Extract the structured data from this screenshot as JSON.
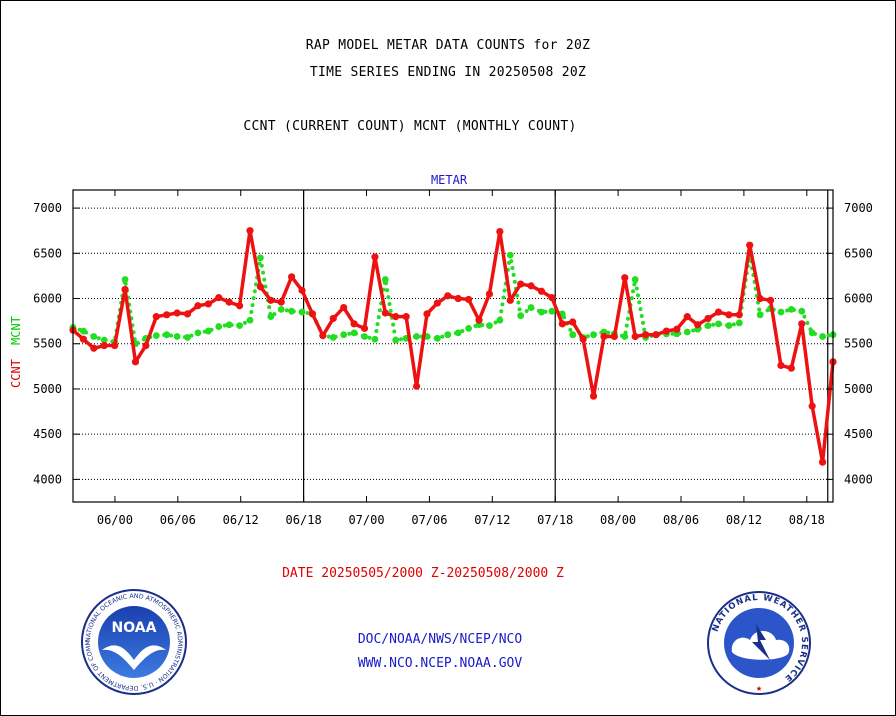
{
  "title_lines": [
    "RAP MODEL METAR DATA COUNTS for 20Z",
    "TIME SERIES ENDING IN 20250508 20Z"
  ],
  "subtitle": "CCNT (CURRENT COUNT) MCNT (MONTHLY COUNT)",
  "date_range": "DATE 20250505/2000 Z-20250508/2000 Z",
  "footer": {
    "line1": "DOC/NOAA/NWS/NCEP/NCO",
    "line2": "WWW.NCO.NCEP.NOAA.GOV"
  },
  "colors": {
    "ccnt": "#ee1111",
    "mcnt": "#22dd22",
    "axis_label_ccnt": "#e00000",
    "axis_label_mcnt": "#00cc00",
    "panel_title": "#1a1ac8"
  },
  "logos": {
    "noaa": "NOAA",
    "noaa_ring_text": "NATIONAL OCEANIC AND ATMOSPHERIC ADMINISTRATION · U.S. DEPARTMENT OF COMMERCE",
    "nws_ring_text": "NATIONAL WEATHER SERVICE"
  },
  "chart_data": {
    "type": "line",
    "panel_title": "METAR",
    "ylabel_ccnt": "CCNT",
    "ylabel_mcnt": "MCNT",
    "ylim": [
      3750,
      7200
    ],
    "yticks": [
      4000,
      4500,
      5000,
      5500,
      6000,
      6500,
      7000
    ],
    "grid": true,
    "x_tick_labels": [
      "06/00",
      "06/06",
      "06/12",
      "06/18",
      "07/00",
      "07/06",
      "07/12",
      "07/18",
      "08/00",
      "08/06",
      "08/12",
      "08/18"
    ],
    "x_day_boundaries": [
      "06/18",
      "07/18"
    ],
    "x_end_marker": "08/20",
    "x_start_hour": -4,
    "x_end_hour": 68.5,
    "series": [
      {
        "name": "CCNT",
        "values": [
          5650,
          5550,
          5450,
          5480,
          5480,
          6100,
          5300,
          5480,
          5800,
          5820,
          5840,
          5830,
          5920,
          5940,
          6010,
          5960,
          5920,
          6750,
          6130,
          5980,
          5960,
          6240,
          6090,
          5830,
          5590,
          5780,
          5900,
          5720,
          5670,
          6460,
          5840,
          5800,
          5800,
          5030,
          5830,
          5950,
          6030,
          6000,
          5990,
          5760,
          6050,
          6740,
          5980,
          6160,
          6140,
          6080,
          6010,
          5720,
          5740,
          5550,
          4920,
          5580,
          5580,
          6230,
          5580,
          5600,
          5600,
          5640,
          5660,
          5800,
          5710,
          5780,
          5850,
          5820,
          5820,
          6590,
          6000,
          5980,
          5260,
          5230,
          5720,
          4810,
          4190,
          5300
        ]
      },
      {
        "name": "MCNT",
        "values": [
          5680,
          5640,
          5580,
          5540,
          5520,
          6210,
          5500,
          5560,
          5590,
          5600,
          5580,
          5570,
          5620,
          5640,
          5690,
          5710,
          5700,
          5760,
          6450,
          5800,
          5880,
          5860,
          5850,
          5830,
          5590,
          5570,
          5600,
          5620,
          5580,
          5550,
          6210,
          5540,
          5560,
          5580,
          5580,
          5560,
          5600,
          5620,
          5670,
          5710,
          5700,
          5760,
          6480,
          5810,
          5900,
          5850,
          5860,
          5830,
          5600,
          5570,
          5600,
          5630,
          5610,
          5580,
          6210,
          5570,
          5600,
          5610,
          5610,
          5630,
          5660,
          5700,
          5720,
          5700,
          5730,
          6500,
          5820,
          5890,
          5850,
          5880,
          5860,
          5620,
          5580,
          5600
        ]
      }
    ]
  }
}
